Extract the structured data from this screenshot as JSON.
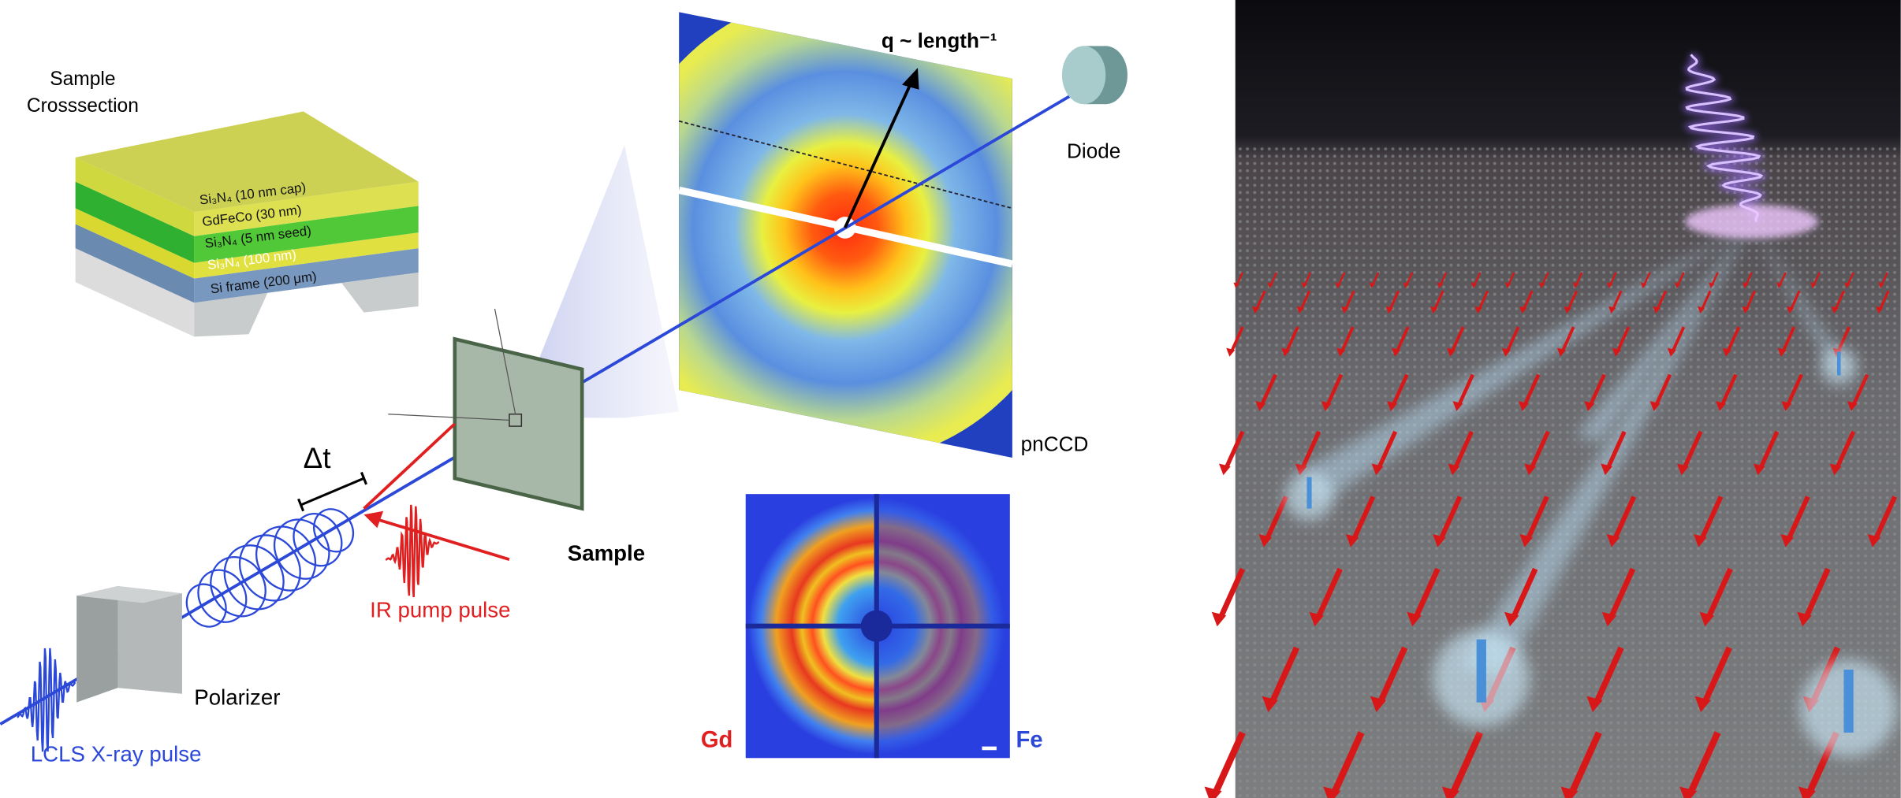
{
  "crosssection": {
    "title": [
      "Sample",
      "Crosssection"
    ],
    "layers": [
      "Si₃N₄ (10 nm cap)",
      "GdFeCo (30 nm)",
      "Si₃N₄ (5 nm seed)",
      "Si₃N₄ (100 nm)",
      "Si frame (200 μm)"
    ]
  },
  "labels": {
    "q_axis": "q ~ length⁻¹",
    "diode": "Diode",
    "detector": "pnCCD",
    "delay": "Δt",
    "sample": "Sample",
    "ir_pulse": "IR pump pulse",
    "polarizer": "Polarizer",
    "xray_pulse": "LCLS X-ray pulse",
    "gd": "Gd",
    "fe": "Fe"
  }
}
